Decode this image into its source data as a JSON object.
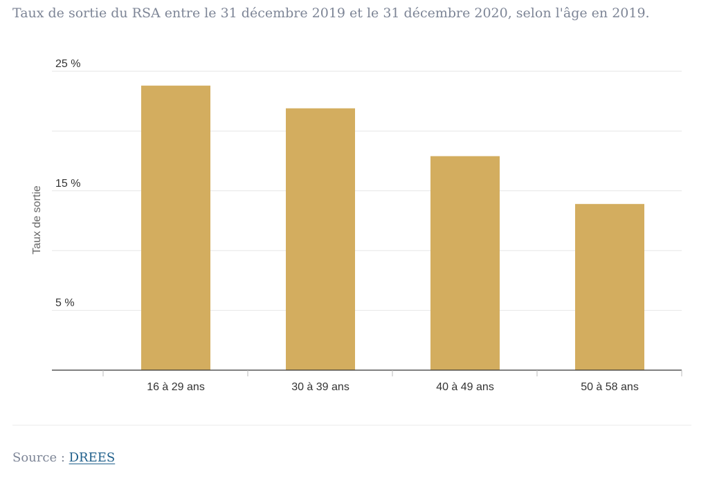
{
  "subtitle": "Taux de sortie du RSA entre le 31 décembre 2019 et le 31 décembre 2020, selon l'âge en 2019.",
  "source": {
    "prefix": "Source : ",
    "link_label": "DREES"
  },
  "colors": {
    "bar": "#d3ad5f",
    "gridline": "#e6e6e6",
    "axis": "#333333",
    "link": "#1f5f8b"
  },
  "chart_data": {
    "type": "bar",
    "categories": [
      "16 à 29 ans",
      "30 à 39 ans",
      "40 à 49 ans",
      "50 à 58 ans"
    ],
    "series": [
      {
        "values": [
          23.8,
          21.9,
          17.9,
          13.9
        ]
      }
    ],
    "ylabel": "Taux de sortie",
    "xlabel": "",
    "ylim": [
      0,
      25
    ],
    "y_ticks": [
      {
        "value": 5,
        "label": "5 %"
      },
      {
        "value": 15,
        "label": "15 %"
      },
      {
        "value": 25,
        "label": "25 %"
      }
    ],
    "y_gridlines": [
      5,
      10,
      15,
      20,
      25
    ],
    "grid": true,
    "legend": "none"
  }
}
